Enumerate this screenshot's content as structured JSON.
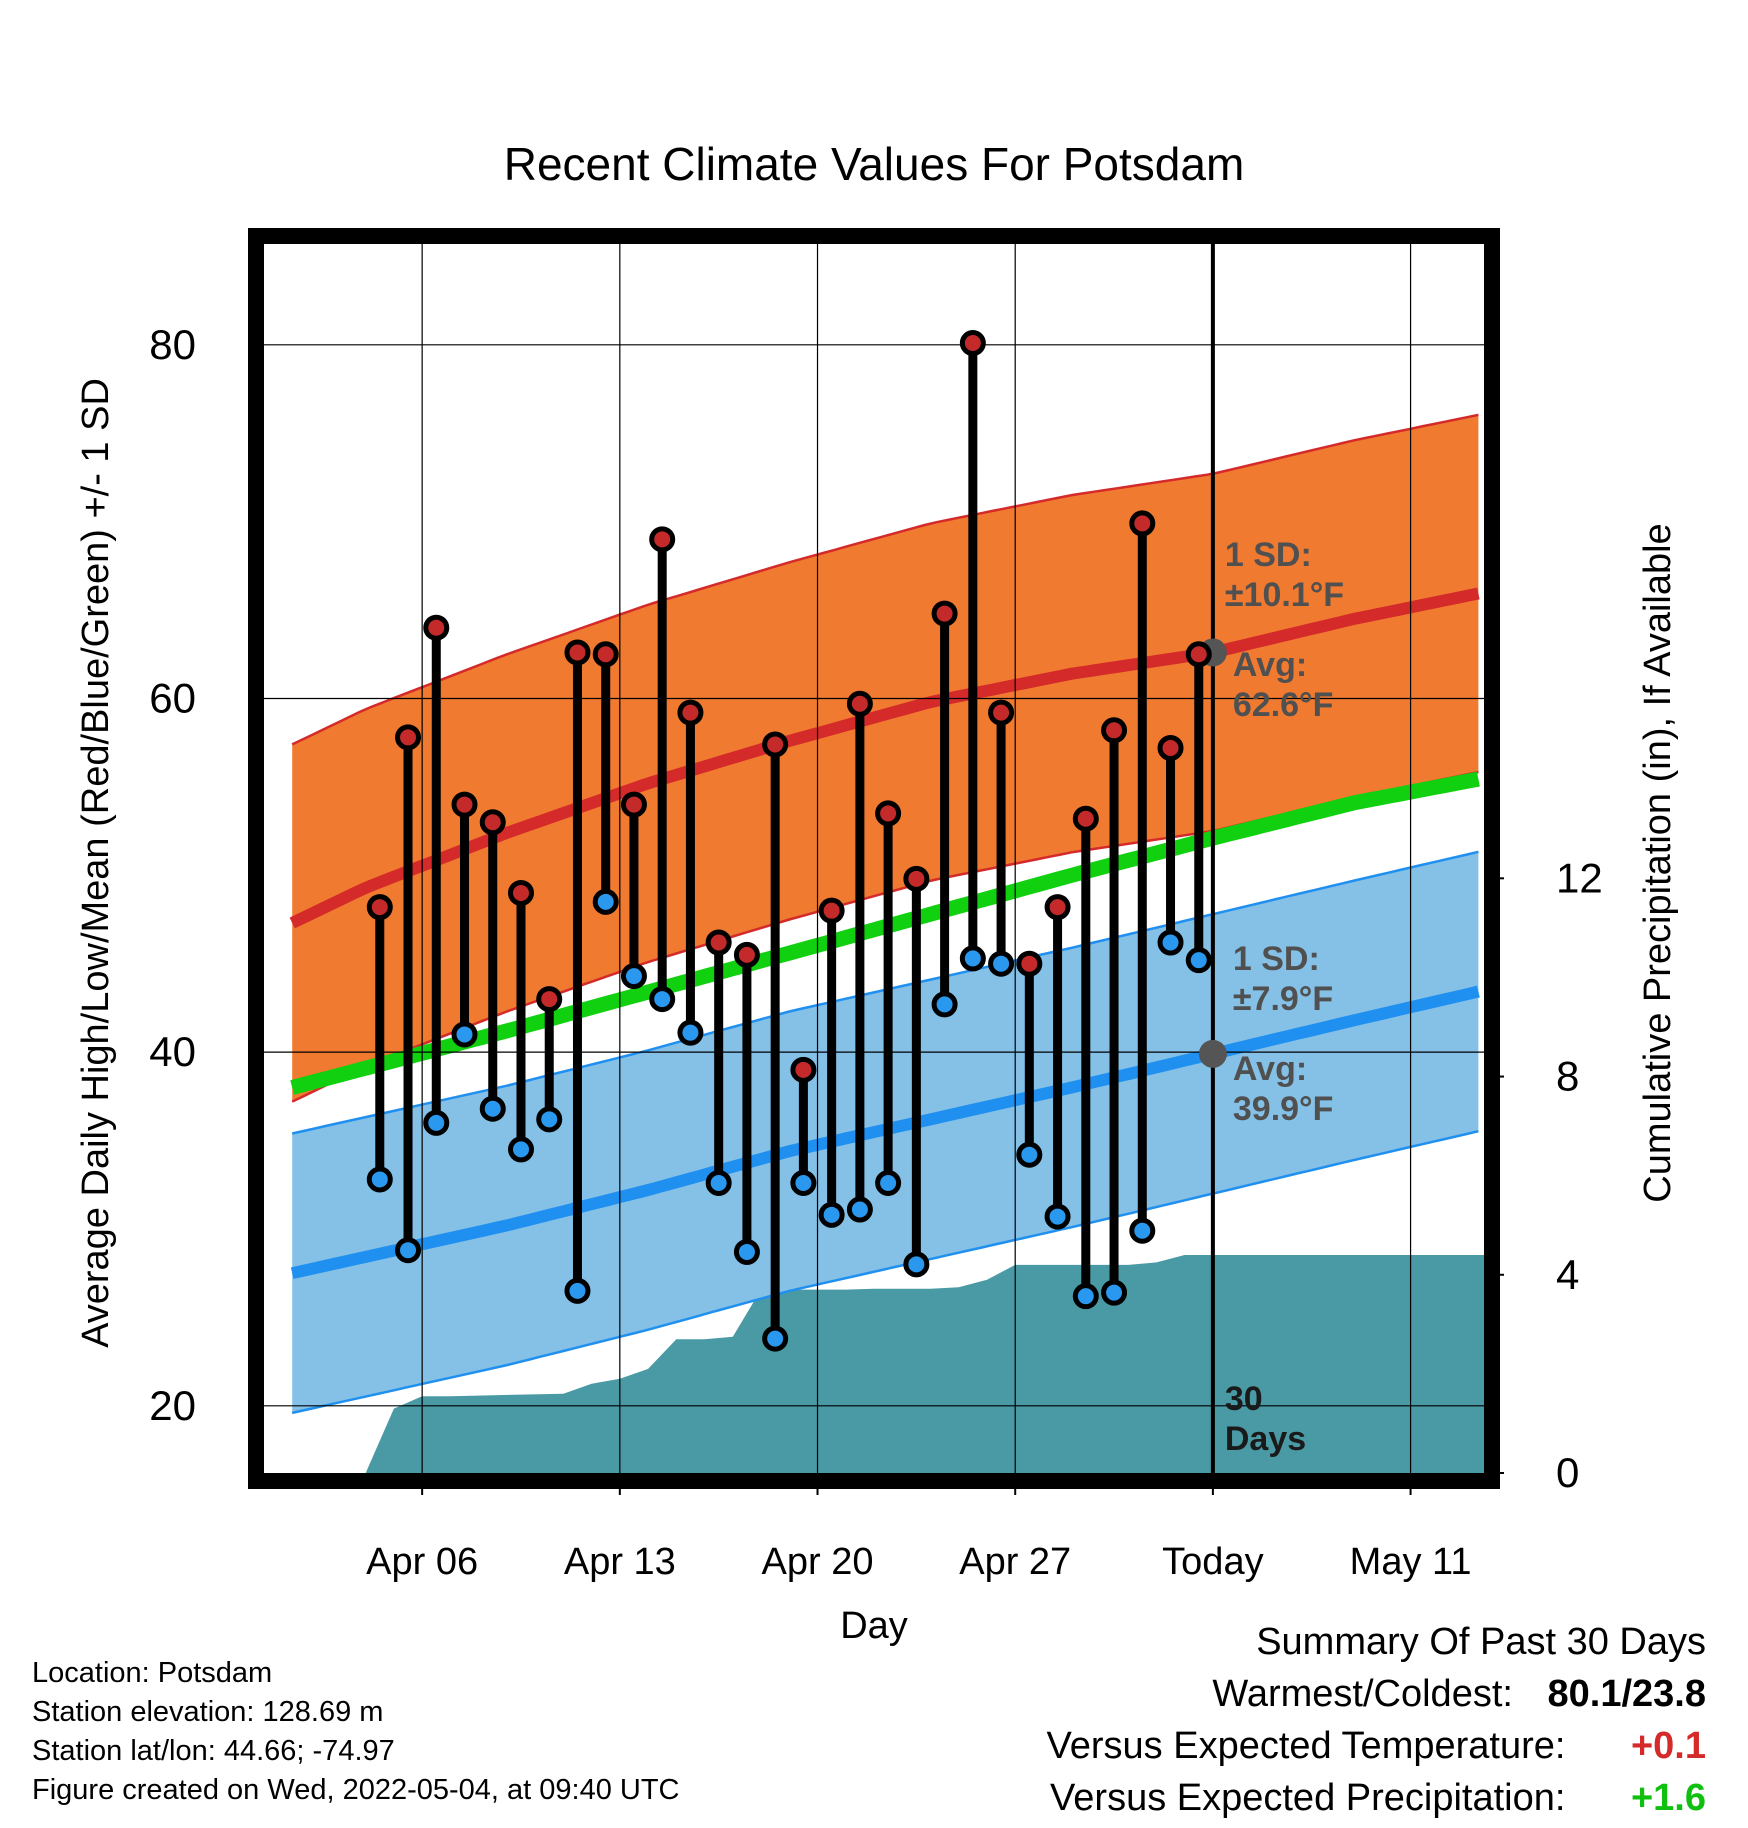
{
  "chart_data": {
    "type": "line",
    "title": "Recent Climate Values For Potsdam",
    "xlabel": "Day",
    "ylabel_left": "Average Daily High/Low/Mean (Red/Blue/Green) +/- 1 SD",
    "ylabel_right": "Cumulative Precipitation (in), If Available",
    "x_tick_labels": [
      "Apr 06",
      "Apr 13",
      "Apr 20",
      "Apr 27",
      "Today",
      "May 11"
    ],
    "y_left_ticks": [
      "20",
      "40",
      "60",
      "80"
    ],
    "y_left_range": [
      16.2,
      85.7
    ],
    "y_right_ticks": [
      "0",
      "4",
      "8",
      "12"
    ],
    "y_right_range": [
      0,
      24.8
    ],
    "x_range_day_offsets": [
      -33.6,
      9.6
    ],
    "today_day_offset": 0,
    "daily_highs": [
      48.2,
      57.8,
      64.0,
      54.0,
      53.0,
      49.0,
      43.0,
      62.6,
      62.5,
      54.0,
      69.0,
      59.2,
      46.2,
      45.5,
      57.4,
      39.0,
      48.0,
      59.7,
      53.5,
      49.8,
      64.8,
      80.1,
      59.2,
      45.0,
      48.2,
      53.2,
      58.2,
      69.9,
      57.2,
      62.5
    ],
    "daily_lows": [
      32.8,
      28.8,
      36.0,
      41.0,
      36.8,
      34.5,
      36.2,
      26.5,
      48.5,
      44.3,
      43.0,
      41.1,
      32.6,
      28.7,
      23.8,
      32.6,
      30.8,
      31.1,
      32.6,
      28.0,
      42.7,
      45.3,
      45.0,
      34.2,
      30.7,
      26.2,
      26.4,
      29.9,
      46.2,
      45.2
    ],
    "normal_high": {
      "day_offsets": [
        -32.6,
        -30,
        -25,
        -20,
        -15,
        -10,
        -5,
        0,
        5,
        9.6
      ],
      "values": [
        47.3,
        49.3,
        52.4,
        55.2,
        57.6,
        59.8,
        61.4,
        62.6,
        64.5,
        66.0
      ]
    },
    "normal_high_sd": 10.1,
    "normal_low": {
      "day_offsets": [
        -32.6,
        -25,
        -20,
        -15,
        -10,
        -5,
        0,
        5,
        9.6
      ],
      "values": [
        27.5,
        30.2,
        32.2,
        34.4,
        36.2,
        38.0,
        39.9,
        41.8,
        43.5
      ]
    },
    "normal_low_sd": 7.9,
    "normal_mean": {
      "day_offsets": [
        -32.6,
        -25,
        -20,
        -15,
        -10,
        -5,
        0,
        5,
        9.6
      ],
      "values": [
        38.0,
        41.2,
        43.4,
        45.6,
        47.8,
        50.0,
        52.1,
        54.1,
        55.5
      ]
    },
    "cumulative_precip": {
      "day_offsets": [
        -30,
        -29,
        -28,
        -27,
        -23,
        -22,
        -21,
        -20,
        -19,
        -18,
        -17,
        -16,
        -15,
        -14,
        -13,
        -12,
        -11,
        -10,
        -9,
        -8,
        -7,
        -6,
        -5,
        -4,
        -3,
        -2,
        -1,
        0,
        9.6
      ],
      "values": [
        0,
        1.3,
        1.55,
        1.55,
        1.6,
        1.8,
        1.9,
        2.1,
        2.7,
        2.7,
        2.75,
        3.7,
        3.7,
        3.7,
        3.7,
        3.72,
        3.72,
        3.72,
        3.75,
        3.9,
        4.2,
        4.2,
        4.2,
        4.2,
        4.2,
        4.25,
        4.4,
        4.4,
        4.4
      ]
    },
    "annotations": {
      "high_sd": [
        "1 SD:",
        "±10.1°F"
      ],
      "high_avg": [
        "Avg:",
        "62.6°F"
      ],
      "low_sd": [
        "1 SD:",
        "±7.9°F"
      ],
      "low_avg": [
        "Avg:",
        "39.9°F"
      ],
      "window": [
        "30",
        "Days"
      ]
    },
    "colors": {
      "high_band": "#f07a30",
      "high_line": "#d42a2a",
      "low_band": "#85c1e6",
      "low_line": "#2090f0",
      "mean_line": "#10d010",
      "precip": "#4a9aa5",
      "high_dot": "#c42a2a",
      "low_dot": "#2a98ee",
      "annotation": "#505050"
    },
    "grid": true
  },
  "footer": {
    "location": "Location: Potsdam",
    "elevation": "Station elevation: 128.69 m",
    "latlon": "Station lat/lon: 44.66; -74.97",
    "created": "Figure created on Wed, 2022-05-04, at 09:40 UTC"
  },
  "summary": {
    "title": "Summary Of Past 30 Days",
    "warmest_label": "Warmest/Coldest:",
    "warmest_value": "80.1/23.8",
    "temp_label": "Versus Expected Temperature:",
    "temp_value": "+0.1",
    "temp_color": "#d42a2a",
    "precip_label": "Versus Expected Precipitation:",
    "precip_value": "+1.6",
    "precip_color": "#10c010"
  }
}
